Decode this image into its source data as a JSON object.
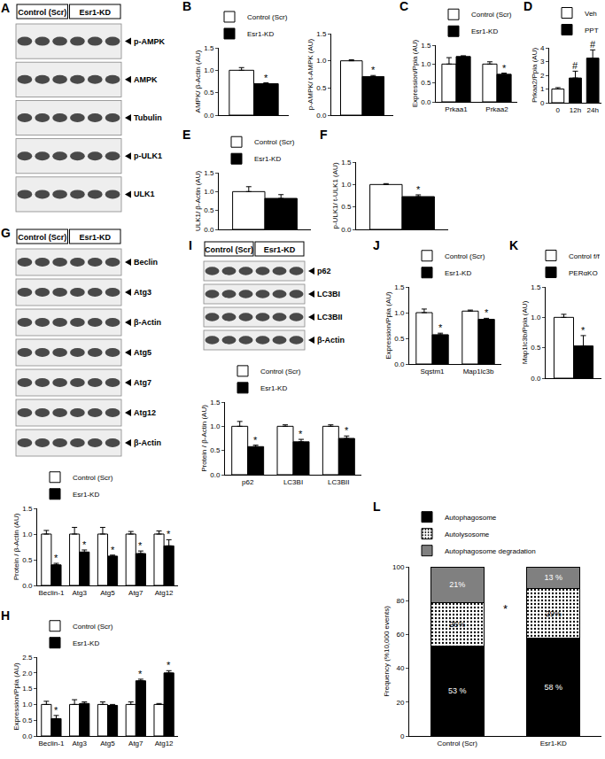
{
  "blots": [
    {
      "panel": "A",
      "groups": [
        "Control (Scr)",
        "Esr1-KD"
      ],
      "rows": [
        "p-AMPK",
        "AMPK",
        "Tubulin",
        "p-ULK1",
        "ULK1"
      ]
    },
    {
      "panel": "G",
      "groups": [
        "Control (Scr)",
        "Esr1-KD"
      ],
      "rows": [
        "Beclin",
        "Atg3",
        "β-Actin",
        "Atg5",
        "Atg7",
        "Atg12",
        "β-Actin"
      ]
    },
    {
      "panel": "I",
      "groups": [
        "Control (Scr)",
        "Esr1-KD"
      ],
      "rows": [
        "p62",
        "LC3BI",
        "LC3BII",
        "β-Actin"
      ]
    }
  ],
  "chart_data": [
    {
      "panel": "B",
      "type": "bar",
      "ylabel": "AMPK/ β-Actin (AU)",
      "categories": [
        null
      ],
      "tick_labels": "y",
      "legend": "top-left",
      "grid": false,
      "series": [
        {
          "name": "Control (Scr)",
          "color": "#ffffff",
          "values": [
            1.0
          ],
          "errors": [
            0.06
          ]
        },
        {
          "name": "Esr1-KD",
          "color": "#000000",
          "values": [
            0.7
          ],
          "errors": [
            0.02
          ]
        }
      ],
      "ylim": [
        0,
        1.5
      ],
      "yticks": [
        {
          "value": 0,
          "label": "0.0"
        },
        {
          "value": 0.5,
          "label": "0.5"
        },
        {
          "value": 1,
          "label": "1.0"
        },
        {
          "value": 1.5,
          "label": "1.5"
        }
      ],
      "annotations": [
        {
          "series": "Esr1-KD",
          "index": 0,
          "text": "*"
        }
      ]
    },
    {
      "type": "bar",
      "ylabel": "p-AMPK/ t-AMPK (AU)",
      "categories": [
        null
      ],
      "tick_labels": "y",
      "grid": false,
      "series": [
        {
          "name": "Control (Scr)",
          "color": "#ffffff",
          "values": [
            1.0
          ],
          "errors": [
            0.02
          ]
        },
        {
          "name": "Esr1-KD",
          "color": "#000000",
          "values": [
            0.71
          ],
          "errors": [
            0.02
          ]
        }
      ],
      "ylim": [
        0,
        1.5
      ],
      "yticks": [
        {
          "value": 0,
          "label": "0.0"
        },
        {
          "value": 0.5,
          "label": "0.5"
        },
        {
          "value": 1,
          "label": "1.0"
        },
        {
          "value": 1.5,
          "label": "1.5"
        }
      ],
      "annotations": [
        {
          "series": "Esr1-KD",
          "index": 0,
          "text": "*"
        }
      ]
    },
    {
      "panel": "C",
      "type": "bar",
      "ylabel": "Expression/Ppia (AU)",
      "categories": [
        "Prkaa1",
        "Prkaa2"
      ],
      "legend": "top-left",
      "grid": false,
      "series": [
        {
          "name": "Control (Scr)",
          "color": "#ffffff",
          "values": [
            1.0,
            1.0
          ],
          "errors": [
            0.17,
            0.06
          ]
        },
        {
          "name": "Esr1-KD",
          "color": "#000000",
          "values": [
            1.2,
            0.73
          ],
          "errors": [
            0.02,
            0.03
          ]
        }
      ],
      "ylim": [
        0,
        1.5
      ],
      "yticks": [
        {
          "value": 0,
          "label": "0.0"
        },
        {
          "value": 0.5,
          "label": "0.5"
        },
        {
          "value": 1,
          "label": "1.0"
        },
        {
          "value": 1.5,
          "label": "1.5"
        }
      ],
      "annotations": [
        {
          "series": "Esr1-KD",
          "index": 1,
          "text": "*"
        }
      ]
    },
    {
      "panel": "D",
      "type": "bar",
      "ylabel": "Prkaa2/Ppia (AU)",
      "categories": [
        "0",
        "12h",
        "24h"
      ],
      "legend": "top-left",
      "grid": false,
      "series": [
        {
          "name": "Veh",
          "color": "#ffffff",
          "values": [
            1.0,
            null,
            null
          ],
          "errors": [
            0.1,
            null,
            null
          ]
        },
        {
          "name": "PPT",
          "color": "#000000",
          "values": [
            null,
            1.8,
            3.25
          ],
          "errors": [
            null,
            0.5,
            0.6
          ]
        }
      ],
      "ylim": [
        0,
        4
      ],
      "yticks": [
        0,
        1,
        2,
        3,
        4
      ],
      "annotations": [
        {
          "series": "PPT",
          "index": 1,
          "text": "#"
        },
        {
          "series": "PPT",
          "index": 2,
          "text": "#"
        }
      ]
    },
    {
      "panel": "E",
      "type": "bar",
      "ylabel": "ULK1/ β-Actin (AU)",
      "categories": [
        null
      ],
      "tick_labels": "y",
      "legend": "top-left",
      "grid": false,
      "series": [
        {
          "name": "Control (Scr)",
          "color": "#ffffff",
          "values": [
            1.0
          ],
          "errors": [
            0.13
          ]
        },
        {
          "name": "Esr1-KD",
          "color": "#000000",
          "values": [
            0.82
          ],
          "errors": [
            0.1
          ]
        }
      ],
      "ylim": [
        0,
        1.5
      ],
      "yticks": [
        {
          "value": 0,
          "label": "0.0"
        },
        {
          "value": 0.5,
          "label": "0.5"
        },
        {
          "value": 1,
          "label": "1.0"
        },
        {
          "value": 1.5,
          "label": "1.5"
        }
      ],
      "annotations": []
    },
    {
      "panel": "F",
      "type": "bar",
      "ylabel": "p-ULK1/ t-ULK1 (AU)",
      "categories": [
        null
      ],
      "tick_labels": "y",
      "grid": false,
      "series": [
        {
          "name": "Control (Scr)",
          "color": "#ffffff",
          "values": [
            1.0
          ],
          "errors": [
            0.02
          ]
        },
        {
          "name": "Esr1-KD",
          "color": "#000000",
          "values": [
            0.73
          ],
          "errors": [
            0.04
          ]
        }
      ],
      "ylim": [
        0,
        1.5
      ],
      "yticks": [
        {
          "value": 0,
          "label": "0.0"
        },
        {
          "value": 0.5,
          "label": "0.5"
        },
        {
          "value": 1,
          "label": "1.0"
        },
        {
          "value": 1.5,
          "label": "1.5"
        }
      ],
      "annotations": [
        {
          "series": "Esr1-KD",
          "index": 0,
          "text": "*"
        }
      ]
    },
    {
      "type": "bar",
      "ylabel": "Protein / β-Actin (AU)",
      "categories": [
        "Beclin-1",
        "Atg3",
        "Atg5",
        "Atg7",
        "Atg12"
      ],
      "legend": "top-left",
      "grid": false,
      "series": [
        {
          "name": "Control (Scr)",
          "color": "#ffffff",
          "values": [
            1.0,
            1.0,
            1.0,
            1.0,
            1.0
          ],
          "errors": [
            0.07,
            0.13,
            0.13,
            0.05,
            0.06
          ]
        },
        {
          "name": "Esr1-KD",
          "color": "#000000",
          "values": [
            0.4,
            0.65,
            0.57,
            0.62,
            0.77
          ],
          "errors": [
            0.03,
            0.04,
            0.02,
            0.05,
            0.12
          ]
        }
      ],
      "ylim": [
        0,
        1.5
      ],
      "yticks": [
        {
          "value": 0,
          "label": "0.0"
        },
        {
          "value": 0.5,
          "label": "0.5"
        },
        {
          "value": 1,
          "label": "1.0"
        },
        {
          "value": 1.5,
          "label": "1.5"
        }
      ],
      "annotations": [
        {
          "series": "Esr1-KD",
          "index": 0,
          "text": "*"
        },
        {
          "series": "Esr1-KD",
          "index": 1,
          "text": "*"
        },
        {
          "series": "Esr1-KD",
          "index": 2,
          "text": "*"
        },
        {
          "series": "Esr1-KD",
          "index": 3,
          "text": "*"
        },
        {
          "series": "Esr1-KD",
          "index": 4,
          "text": "*"
        }
      ]
    },
    {
      "panel": "H",
      "type": "bar",
      "ylabel": "Expression/Ppia (AU)",
      "categories": [
        "Beclin-1",
        "Atg3",
        "Atg5",
        "Atg7",
        "Atg12"
      ],
      "legend": "top-left",
      "grid": false,
      "series": [
        {
          "name": "Control (Scr)",
          "color": "#ffffff",
          "values": [
            1.0,
            1.0,
            1.0,
            1.0,
            1.0
          ],
          "errors": [
            0.1,
            0.15,
            0.08,
            0.08,
            0.03
          ]
        },
        {
          "name": "Esr1-KD",
          "color": "#000000",
          "values": [
            0.55,
            1.03,
            0.97,
            1.75,
            2.0
          ],
          "errors": [
            0.1,
            0.05,
            0.03,
            0.05,
            0.07
          ]
        }
      ],
      "ylim": [
        0,
        2.5
      ],
      "yticks": [
        {
          "value": 0,
          "label": "0.0"
        },
        {
          "value": 0.5,
          "label": "0.5"
        },
        {
          "value": 1,
          "label": "1.0"
        },
        {
          "value": 1.5,
          "label": "1.5"
        },
        {
          "value": 2,
          "label": "2.0"
        },
        {
          "value": 2.5,
          "label": "2.5"
        }
      ],
      "annotations": [
        {
          "series": "Esr1-KD",
          "index": 0,
          "text": "*"
        },
        {
          "series": "Esr1-KD",
          "index": 3,
          "text": "*"
        },
        {
          "series": "Esr1-KD",
          "index": 4,
          "text": "*"
        }
      ]
    },
    {
      "type": "bar",
      "ylabel": "Protein / β-Actin (AU)",
      "categories": [
        "p62",
        "LC3BI",
        "LC3BII"
      ],
      "legend": "top-left",
      "grid": false,
      "series": [
        {
          "name": "Control (Scr)",
          "color": "#ffffff",
          "values": [
            1.0,
            1.0,
            1.0
          ],
          "errors": [
            0.1,
            0.03,
            0.03
          ]
        },
        {
          "name": "Esr1-KD",
          "color": "#000000",
          "values": [
            0.58,
            0.68,
            0.75
          ],
          "errors": [
            0.03,
            0.05,
            0.05
          ]
        }
      ],
      "ylim": [
        0,
        1.5
      ],
      "yticks": [
        {
          "value": 0,
          "label": "0.0"
        },
        {
          "value": 0.5,
          "label": "0.5"
        },
        {
          "value": 1,
          "label": "1.0"
        },
        {
          "value": 1.5,
          "label": "1.5"
        }
      ],
      "annotations": [
        {
          "series": "Esr1-KD",
          "index": 0,
          "text": "*"
        },
        {
          "series": "Esr1-KD",
          "index": 1,
          "text": "*"
        },
        {
          "series": "Esr1-KD",
          "index": 2,
          "text": "*"
        }
      ]
    },
    {
      "panel": "J",
      "type": "bar",
      "ylabel": "Expression/Ppia (AU)",
      "categories": [
        "Sqstm1",
        "Map1lc3b"
      ],
      "legend": "top-left",
      "grid": false,
      "series": [
        {
          "name": "Control (Scr)",
          "color": "#ffffff",
          "values": [
            1.0,
            1.03
          ],
          "errors": [
            0.07,
            0.02
          ]
        },
        {
          "name": "Esr1-KD",
          "color": "#000000",
          "values": [
            0.57,
            0.87
          ],
          "errors": [
            0.03,
            0.02
          ]
        }
      ],
      "ylim": [
        0,
        1.5
      ],
      "yticks": [
        {
          "value": 0,
          "label": "0.0"
        },
        {
          "value": 0.5,
          "label": "0.5"
        },
        {
          "value": 1,
          "label": "1.0"
        },
        {
          "value": 1.5,
          "label": "1.5"
        }
      ],
      "annotations": [
        {
          "series": "Esr1-KD",
          "index": 0,
          "text": "*"
        },
        {
          "series": "Esr1-KD",
          "index": 1,
          "text": "*"
        }
      ]
    },
    {
      "panel": "K",
      "type": "bar",
      "ylabel": "Map1lc3b/Ppia (AU)",
      "categories": [
        null
      ],
      "tick_labels": "y",
      "legend": "top-left",
      "grid": false,
      "series": [
        {
          "name": "Control f/f",
          "color": "#ffffff",
          "values": [
            1.0
          ],
          "errors": [
            0.05
          ]
        },
        {
          "name": "PERαKO",
          "color": "#000000",
          "values": [
            0.53
          ],
          "errors": [
            0.17
          ]
        }
      ],
      "ylim": [
        0,
        1.5
      ],
      "yticks": [
        {
          "value": 0,
          "label": "0.0"
        },
        {
          "value": 0.5,
          "label": "0.5"
        },
        {
          "value": 1,
          "label": "1.0"
        },
        {
          "value": 1.5,
          "label": "1.5"
        }
      ],
      "annotations": [
        {
          "series": "PERαKO",
          "index": 0,
          "text": "*"
        }
      ]
    },
    {
      "panel": "L",
      "type": "bar",
      "stacked": true,
      "data_labels": true,
      "ylabel": "Frequency (%10,000 events)",
      "categories": [
        "Control (Scr)",
        "Esr1-KD"
      ],
      "legend": "top-left",
      "grid": false,
      "series": [
        {
          "name": "Autophagosome",
          "color": "#000000",
          "values": [
            53,
            58
          ],
          "value_labels": [
            "53 %",
            "58 %"
          ]
        },
        {
          "name": "Autolysosome",
          "color": "#ffffff",
          "marker": "dotted",
          "values": [
            26,
            29
          ],
          "value_labels": [
            "26%",
            "29%"
          ]
        },
        {
          "name": "Autophagosome degradation",
          "color": "#808080",
          "values": [
            21,
            13
          ],
          "value_labels": [
            "21%",
            "13 %"
          ]
        }
      ],
      "ylim": [
        0,
        100
      ],
      "yticks": [
        0,
        20,
        40,
        60,
        80,
        100
      ],
      "annotations": [
        {
          "between": [
            0,
            1
          ],
          "text": "*"
        }
      ]
    }
  ]
}
